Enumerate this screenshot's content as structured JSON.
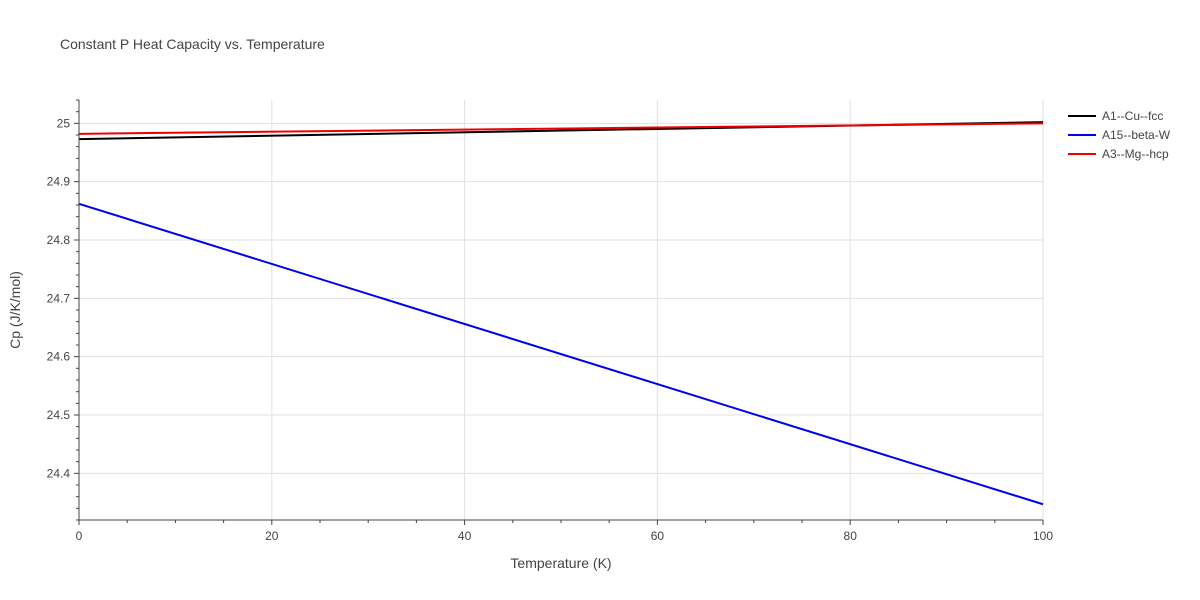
{
  "chart_data": {
    "type": "line",
    "title": "Constant P Heat Capacity vs. Temperature",
    "xlabel": "Temperature (K)",
    "ylabel": "Cp (J/K/mol)",
    "xlim": [
      0,
      100
    ],
    "ylim": [
      24.32,
      25.04
    ],
    "xticks": [
      0,
      20,
      40,
      60,
      80,
      100
    ],
    "yticks": [
      24.4,
      24.5,
      24.6,
      24.7,
      24.8,
      24.9,
      25
    ],
    "ytick_labels": [
      "24.4",
      "24.5",
      "24.6",
      "24.7",
      "24.8",
      "24.9",
      "25"
    ],
    "grid": true,
    "legend_position": "top-right",
    "series": [
      {
        "name": "A1--Cu--fcc",
        "color": "#000000",
        "x": [
          0,
          100
        ],
        "y": [
          24.973,
          25.002
        ]
      },
      {
        "name": "A15--beta-W",
        "color": "#0000ee",
        "x": [
          0,
          100
        ],
        "y": [
          24.862,
          24.347
        ]
      },
      {
        "name": "A3--Mg--hcp",
        "color": "#ee0000",
        "x": [
          0,
          100
        ],
        "y": [
          24.982,
          25.0
        ]
      }
    ]
  }
}
